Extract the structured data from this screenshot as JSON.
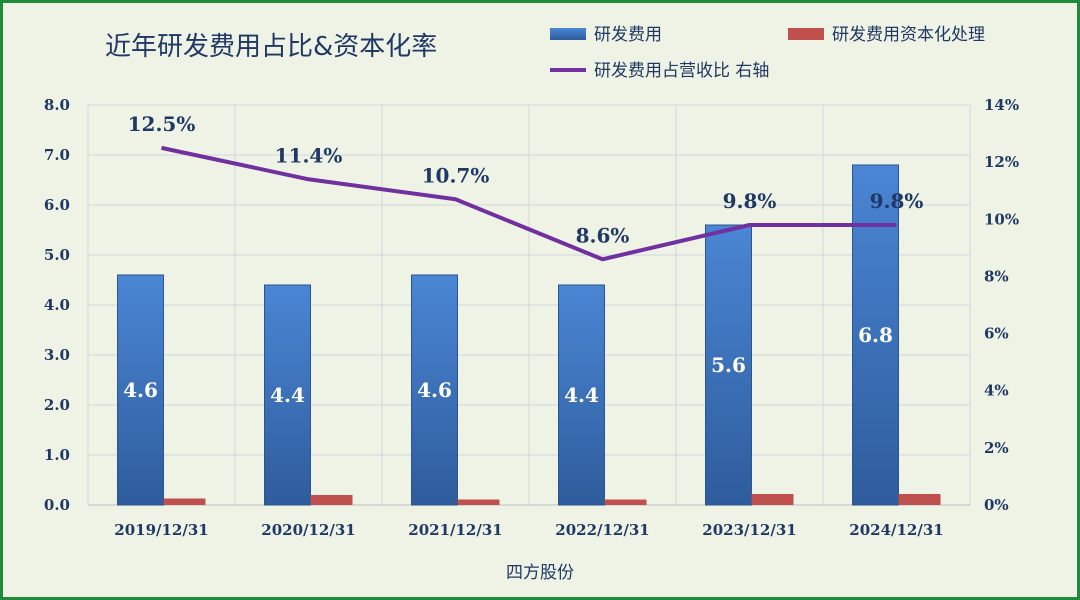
{
  "chart_data": {
    "type": "bar",
    "title": "近年研发费用占比&资本化率",
    "xlabel": "四方股份",
    "categories": [
      "2019/12/31",
      "2020/12/31",
      "2021/12/31",
      "2022/12/31",
      "2023/12/31",
      "2024/12/31"
    ],
    "series": [
      {
        "name": "研发费用",
        "type": "bar",
        "axis": "left",
        "color": "#3a75c4",
        "values": [
          4.6,
          4.4,
          4.6,
          4.4,
          5.6,
          6.8
        ]
      },
      {
        "name": "研发费用资本化处理",
        "type": "bar",
        "axis": "left",
        "color": "#c0504d",
        "values": [
          0.13,
          0.2,
          0.11,
          0.11,
          0.22,
          0.22
        ]
      },
      {
        "name": "研发费用占营收比 右轴",
        "type": "line",
        "axis": "right",
        "color": "#7030a0",
        "values": [
          12.5,
          11.4,
          10.7,
          8.6,
          9.8,
          9.8
        ]
      }
    ],
    "bar_labels": [
      "4.6",
      "4.4",
      "4.6",
      "4.4",
      "5.6",
      "6.8"
    ],
    "line_labels": [
      "12.5%",
      "11.4%",
      "10.7%",
      "8.6%",
      "9.8%",
      "9.8%"
    ],
    "ylim_left": [
      0,
      8
    ],
    "yticks_left": [
      "0.0",
      "1.0",
      "2.0",
      "3.0",
      "4.0",
      "5.0",
      "6.0",
      "7.0",
      "8.0"
    ],
    "ylim_right": [
      0,
      14
    ],
    "yticks_right": [
      "0%",
      "2%",
      "4%",
      "6%",
      "8%",
      "10%",
      "12%",
      "14%"
    ],
    "grid": true,
    "legend_position": "top-right"
  }
}
